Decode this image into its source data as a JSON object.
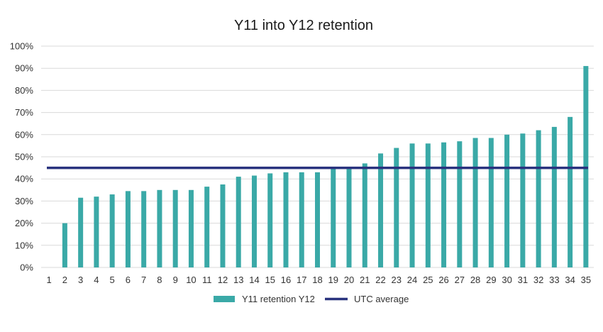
{
  "chart_data": {
    "type": "bar",
    "title": "Y11 into Y12 retention",
    "xlabel": "",
    "ylabel": "",
    "categories": [
      "1",
      "2",
      "3",
      "4",
      "5",
      "6",
      "7",
      "8",
      "9",
      "10",
      "11",
      "12",
      "13",
      "14",
      "15",
      "16",
      "17",
      "18",
      "19",
      "20",
      "21",
      "22",
      "23",
      "24",
      "25",
      "26",
      "27",
      "28",
      "29",
      "30",
      "31",
      "32",
      "33",
      "34",
      "35"
    ],
    "series": [
      {
        "name": "Y11 retention Y12",
        "type": "bar",
        "color": "#3aa9a7",
        "values": [
          0,
          20,
          31.5,
          32,
          33,
          34.5,
          34.5,
          35,
          35,
          35,
          36.5,
          37.5,
          41,
          41.5,
          42.5,
          43,
          43,
          43,
          45,
          45,
          47,
          51.5,
          54,
          56,
          56,
          56.5,
          57,
          58.5,
          58.5,
          60,
          60.5,
          62,
          63.5,
          68,
          91
        ]
      },
      {
        "name": "UTC average",
        "type": "line",
        "color": "#29327e",
        "value": 45
      }
    ],
    "ylim": [
      0,
      100
    ],
    "yticks": [
      "0%",
      "10%",
      "20%",
      "30%",
      "40%",
      "50%",
      "60%",
      "70%",
      "80%",
      "90%",
      "100%"
    ],
    "grid": true,
    "legend_position": "bottom"
  }
}
